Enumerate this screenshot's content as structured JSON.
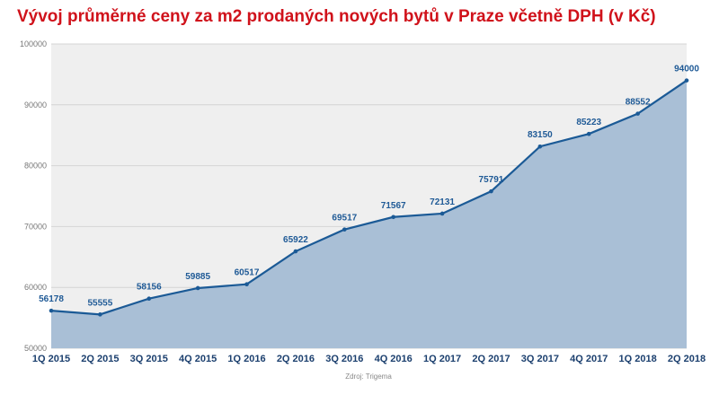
{
  "chart_data": {
    "type": "area",
    "title": "Vývoj průměrné ceny za m2 prodaných nových bytů v Praze včetně DPH (v Kč)",
    "categories": [
      "1Q 2015",
      "2Q 2015",
      "3Q 2015",
      "4Q 2015",
      "1Q 2016",
      "2Q 2016",
      "3Q 2016",
      "4Q 2016",
      "1Q 2017",
      "2Q 2017",
      "3Q 2017",
      "4Q 2017",
      "1Q 2018",
      "2Q 2018"
    ],
    "values": [
      56178,
      55555,
      58156,
      59885,
      60517,
      65922,
      69517,
      71567,
      72131,
      75791,
      83150,
      85223,
      88552,
      94000
    ],
    "ylim": [
      50000,
      100000
    ],
    "yticks": [
      "50000",
      "60000",
      "70000",
      "80000",
      "90000",
      "100000"
    ],
    "grid": true,
    "data_labels": true,
    "source": "Zdroj: Trigema",
    "colors": {
      "title": "#d0121b",
      "line": "#1b5a96",
      "fill": "#a9bfd6",
      "plot_bg": "#efefef",
      "labels": "#1f5a96",
      "axis_labels": "#1b3f6e"
    }
  }
}
